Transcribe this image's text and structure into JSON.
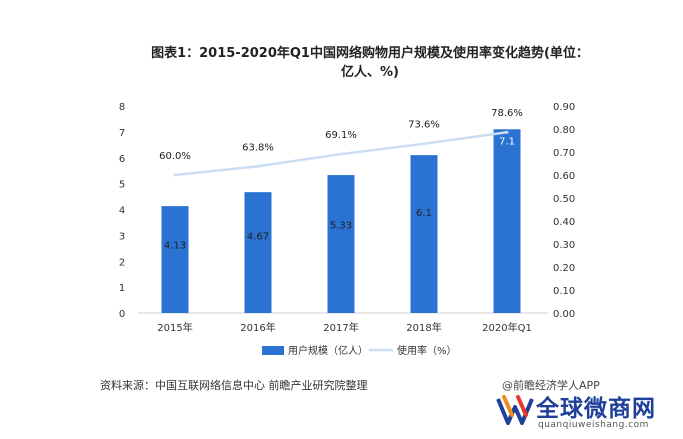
{
  "chart_data": {
    "type": "bar+line",
    "title": "图表1：2015-2020年Q1中国网络购物用户规模及使用率变化趋势(单位：亿人、%)",
    "categories": [
      "2015年",
      "2016年",
      "2017年",
      "2018年",
      "2020年Q1"
    ],
    "series": [
      {
        "name": "用户规模（亿人）",
        "type": "bar",
        "axis": "left",
        "values": [
          4.13,
          4.67,
          5.33,
          6.1,
          7.1
        ],
        "labels": [
          "4.13",
          "4.67",
          "5.33",
          "6.1",
          "7.1"
        ],
        "color": "#2a73d2"
      },
      {
        "name": "使用率（%）",
        "type": "line",
        "axis": "right",
        "values": [
          0.6,
          0.638,
          0.691,
          0.736,
          0.786
        ],
        "labels": [
          "60.0%",
          "63.8%",
          "69.1%",
          "73.6%",
          "78.6%"
        ],
        "color": "#c9def2"
      }
    ],
    "y_left": {
      "min": 0,
      "max": 8,
      "ticks": [
        "0",
        "1",
        "2",
        "3",
        "4",
        "5",
        "6",
        "7",
        "8"
      ]
    },
    "y_right": {
      "min": 0,
      "max": 0.9,
      "ticks": [
        "0.00",
        "0.10",
        "0.20",
        "0.30",
        "0.40",
        "0.50",
        "0.60",
        "0.70",
        "0.80",
        "0.90"
      ]
    },
    "legend_position": "bottom",
    "grid": false
  },
  "source": "资料来源：中国互联网络信息中心 前瞻产业研究院整理",
  "credit": "@前瞻经济学人APP",
  "brand": {
    "name": "全球微商网",
    "url": "quanqiuweishang.com"
  },
  "colors": {
    "bar": "#2a73d2",
    "line": "#c9def2",
    "brand": "#1e3f9a"
  }
}
